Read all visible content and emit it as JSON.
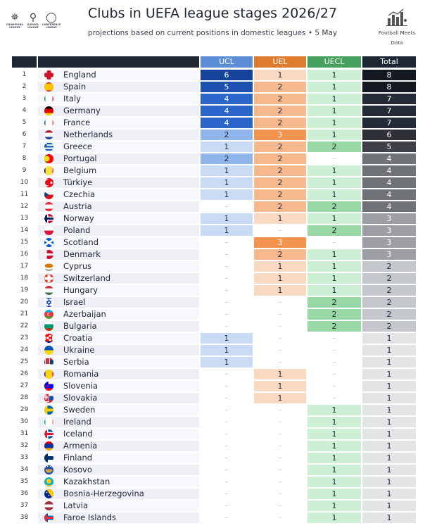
{
  "chart_data": {
    "type": "table",
    "title": "Clubs in UEFA league stages 2026/27",
    "subtitle": "projections based on current positions in domestic leagues  •  5 May",
    "columns": [
      "UCL",
      "UEL",
      "UECL",
      "Total"
    ],
    "rows": [
      {
        "rank": "1",
        "country": "England",
        "ucl": 6,
        "uel": 1,
        "uecl": 1,
        "total": 8,
        "flag": "england"
      },
      {
        "rank": "2",
        "country": "Spain",
        "ucl": 5,
        "uel": 2,
        "uecl": 1,
        "total": 8,
        "flag": "spain"
      },
      {
        "rank": "3",
        "country": "Italy",
        "ucl": 4,
        "uel": 2,
        "uecl": 1,
        "total": 7,
        "flag": "italy"
      },
      {
        "rank": "4",
        "country": "Germany",
        "ucl": 4,
        "uel": 2,
        "uecl": 1,
        "total": 7,
        "flag": "germany"
      },
      {
        "rank": "5",
        "country": "France",
        "ucl": 4,
        "uel": 2,
        "uecl": 1,
        "total": 7,
        "flag": "france"
      },
      {
        "rank": "6",
        "country": "Netherlands",
        "ucl": 2,
        "uel": 3,
        "uecl": 1,
        "total": 6,
        "flag": "netherlands"
      },
      {
        "rank": "7",
        "country": "Greece",
        "ucl": 1,
        "uel": 2,
        "uecl": 2,
        "total": 5,
        "flag": "greece"
      },
      {
        "rank": "8",
        "country": "Portugal",
        "ucl": 2,
        "uel": 2,
        "uecl": null,
        "total": 4,
        "flag": "portugal"
      },
      {
        "rank": "9",
        "country": "Belgium",
        "ucl": 1,
        "uel": 2,
        "uecl": 1,
        "total": 4,
        "flag": "belgium"
      },
      {
        "rank": "10",
        "country": "Türkiye",
        "ucl": 1,
        "uel": 2,
        "uecl": 1,
        "total": 4,
        "flag": "turkiye"
      },
      {
        "rank": "11",
        "country": "Czechia",
        "ucl": 1,
        "uel": 2,
        "uecl": 1,
        "total": 4,
        "flag": "czechia"
      },
      {
        "rank": "12",
        "country": "Austria",
        "ucl": null,
        "uel": 2,
        "uecl": 2,
        "total": 4,
        "flag": "austria"
      },
      {
        "rank": "13",
        "country": "Norway",
        "ucl": 1,
        "uel": 1,
        "uecl": 1,
        "total": 3,
        "flag": "norway"
      },
      {
        "rank": "14",
        "country": "Poland",
        "ucl": 1,
        "uel": null,
        "uecl": 2,
        "total": 3,
        "flag": "poland"
      },
      {
        "rank": "15",
        "country": "Scotland",
        "ucl": null,
        "uel": 3,
        "uecl": null,
        "total": 3,
        "flag": "scotland"
      },
      {
        "rank": "16",
        "country": "Denmark",
        "ucl": null,
        "uel": 2,
        "uecl": 1,
        "total": 3,
        "flag": "denmark"
      },
      {
        "rank": "17",
        "country": "Cyprus",
        "ucl": null,
        "uel": 1,
        "uecl": 1,
        "total": 2,
        "flag": "cyprus"
      },
      {
        "rank": "18",
        "country": "Switzerland",
        "ucl": null,
        "uel": 1,
        "uecl": 1,
        "total": 2,
        "flag": "switzerland"
      },
      {
        "rank": "19",
        "country": "Hungary",
        "ucl": null,
        "uel": 1,
        "uecl": 1,
        "total": 2,
        "flag": "hungary"
      },
      {
        "rank": "20",
        "country": "Israel",
        "ucl": null,
        "uel": null,
        "uecl": 2,
        "total": 2,
        "flag": "israel"
      },
      {
        "rank": "21",
        "country": "Azerbaijan",
        "ucl": null,
        "uel": null,
        "uecl": 2,
        "total": 2,
        "flag": "azerbaijan"
      },
      {
        "rank": "22",
        "country": "Bulgaria",
        "ucl": null,
        "uel": null,
        "uecl": 2,
        "total": 2,
        "flag": "bulgaria"
      },
      {
        "rank": "23",
        "country": "Croatia",
        "ucl": 1,
        "uel": null,
        "uecl": null,
        "total": 1,
        "flag": "croatia"
      },
      {
        "rank": "24",
        "country": "Ukraine",
        "ucl": 1,
        "uel": null,
        "uecl": null,
        "total": 1,
        "flag": "ukraine"
      },
      {
        "rank": "25",
        "country": "Serbia",
        "ucl": 1,
        "uel": null,
        "uecl": null,
        "total": 1,
        "flag": "serbia"
      },
      {
        "rank": "26",
        "country": "Romania",
        "ucl": null,
        "uel": 1,
        "uecl": null,
        "total": 1,
        "flag": "romania"
      },
      {
        "rank": "27",
        "country": "Slovenia",
        "ucl": null,
        "uel": 1,
        "uecl": null,
        "total": 1,
        "flag": "slovenia"
      },
      {
        "rank": "28",
        "country": "Slovakia",
        "ucl": null,
        "uel": 1,
        "uecl": null,
        "total": 1,
        "flag": "slovakia"
      },
      {
        "rank": "29",
        "country": "Sweden",
        "ucl": null,
        "uel": null,
        "uecl": 1,
        "total": 1,
        "flag": "sweden"
      },
      {
        "rank": "30",
        "country": "Ireland",
        "ucl": null,
        "uel": null,
        "uecl": 1,
        "total": 1,
        "flag": "ireland"
      },
      {
        "rank": "31",
        "country": "Iceland",
        "ucl": null,
        "uel": null,
        "uecl": 1,
        "total": 1,
        "flag": "iceland"
      },
      {
        "rank": "32",
        "country": "Armenia",
        "ucl": null,
        "uel": null,
        "uecl": 1,
        "total": 1,
        "flag": "armenia"
      },
      {
        "rank": "33",
        "country": "Finland",
        "ucl": null,
        "uel": null,
        "uecl": 1,
        "total": 1,
        "flag": "finland"
      },
      {
        "rank": "34",
        "country": "Kosovo",
        "ucl": null,
        "uel": null,
        "uecl": 1,
        "total": 1,
        "flag": "kosovo"
      },
      {
        "rank": "35",
        "country": "Kazakhstan",
        "ucl": null,
        "uel": null,
        "uecl": 1,
        "total": 1,
        "flag": "kazakhstan"
      },
      {
        "rank": "36",
        "country": "Bosnia-Herzegovina",
        "ucl": null,
        "uel": null,
        "uecl": 1,
        "total": 1,
        "flag": "bosnia"
      },
      {
        "rank": "37",
        "country": "Latvia",
        "ucl": null,
        "uel": null,
        "uecl": 1,
        "total": 1,
        "flag": "latvia"
      },
      {
        "rank": "38",
        "country": "Faroe Islands",
        "ucl": null,
        "uel": null,
        "uecl": 1,
        "total": 1,
        "flag": "faroe"
      }
    ]
  },
  "header": {
    "logos": [
      {
        "icon": "champions-league-logo",
        "caption": "CHAMPIONS LEAGUE"
      },
      {
        "icon": "europa-league-logo",
        "caption": "EUROPA LEAGUE"
      },
      {
        "icon": "conference-league-logo",
        "caption": "CONFERENCE LEAGUE"
      }
    ],
    "brand_line1": "Football Meets",
    "brand_line2": "Data",
    "brand_icon": "bar-chart-person-logo"
  },
  "empty_marker": "–",
  "colors": {
    "header_dark": "#1f2633",
    "header_ucl": "#5b8ed6",
    "header_uel": "#de7b2c",
    "header_uecl": "#46a05d",
    "header_total": "#1f2633",
    "ucl": {
      "1": "#c9dbf5",
      "2": "#8fb5ea",
      "4": "#2a66c9",
      "5": "#1c50b1",
      "6": "#15439c"
    },
    "uel": {
      "1": "#fad9c2",
      "2": "#f6b98e",
      "3": "#f2944d"
    },
    "uecl": {
      "1": "#cdefd4",
      "2": "#97d8a5"
    },
    "total": {
      "1": "#e3e4e6",
      "2": "#c4c7cc",
      "3": "#9c9ea4",
      "4": "#6f7277",
      "5": "#3e4147",
      "6": "#2d3037",
      "7": "#242a36",
      "8": "#141921"
    }
  }
}
